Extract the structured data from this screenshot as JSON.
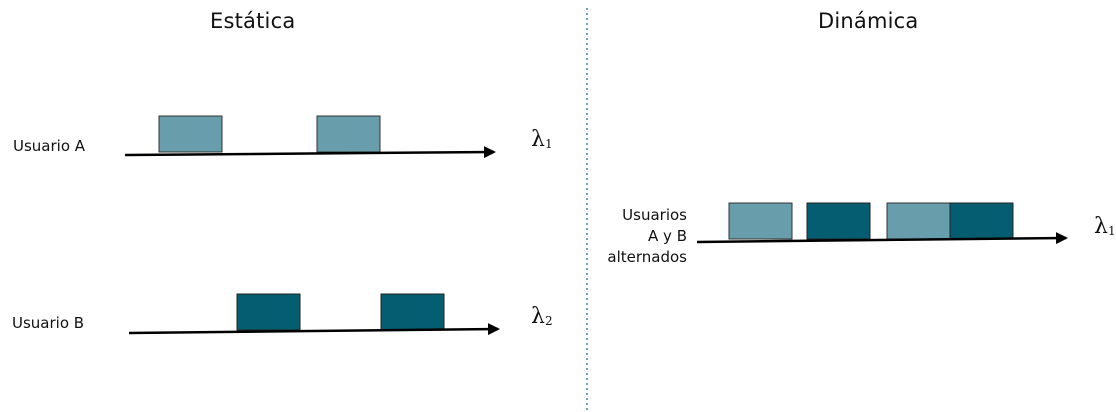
{
  "titles": {
    "static": "Estática",
    "dynamic": "Dinámica"
  },
  "labels": {
    "user_a": "Usuario A",
    "user_b": "Usuario B",
    "alternated": [
      "Usuarios",
      "A y B",
      "alternados"
    ]
  },
  "wavelengths": {
    "static_a": {
      "symbol": "λ",
      "sub": "1"
    },
    "static_b": {
      "symbol": "λ",
      "sub": "2"
    },
    "dynamic": {
      "symbol": "λ",
      "sub": "1"
    }
  },
  "colors": {
    "user_a": "#689EAB",
    "user_b": "#045D71",
    "divider": "#4A8FA5",
    "arrow": "#000000"
  },
  "timelines": [
    {
      "name": "timeline-usuario-a",
      "slots": [
        "user_a",
        "user_a"
      ]
    },
    {
      "name": "timeline-usuario-b",
      "slots": [
        "user_b",
        "user_b"
      ]
    },
    {
      "name": "timeline-alternados",
      "slots": [
        "user_a",
        "user_b",
        "user_a",
        "user_b"
      ]
    }
  ]
}
